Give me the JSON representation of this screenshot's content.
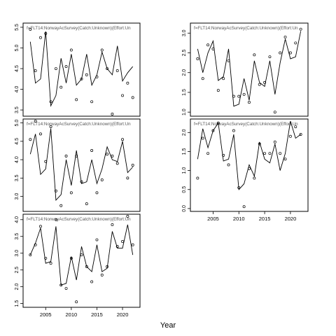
{
  "figure": {
    "xlabel": "Year"
  },
  "chart_data": [
    {
      "type": "line",
      "title": "f=FLT14:NorwayAcSurvey(Catch:Unknown)(Effort:Un",
      "xlim": [
        2001,
        2023
      ],
      "ylim": [
        3.4,
        5.55
      ],
      "yticks": [
        3.5,
        4.0,
        4.5,
        5.0,
        5.5
      ],
      "xticks": [],
      "series": [
        {
          "kind": "line",
          "x": [
            2002,
            2003,
            2004,
            2005,
            2006,
            2007,
            2008,
            2009,
            2010,
            2011,
            2012,
            2013,
            2014,
            2015,
            2016,
            2017,
            2018,
            2019,
            2020,
            2021,
            2022
          ],
          "y": [
            5.15,
            4.15,
            4.25,
            5.4,
            3.6,
            3.85,
            4.75,
            4.15,
            4.85,
            4.1,
            4.25,
            4.85,
            4.1,
            4.35,
            4.9,
            4.5,
            4.35,
            5.05,
            4.2,
            4.4,
            4.55
          ]
        },
        {
          "kind": "points",
          "x": [
            2002,
            2003,
            2004,
            2005,
            2006,
            2007,
            2008,
            2009,
            2010,
            2011,
            2012,
            2013,
            2014,
            2015,
            2016,
            2017,
            2018,
            2019,
            2020,
            2021,
            2022
          ],
          "y": [
            5.45,
            4.45,
            5.25,
            5.35,
            3.7,
            4.5,
            4.05,
            4.55,
            4.95,
            3.75,
            4.25,
            4.35,
            3.7,
            4.3,
            4.95,
            4.5,
            3.4,
            4.45,
            3.85,
            4.15,
            3.8
          ]
        }
      ]
    },
    {
      "type": "line",
      "title": "f=FLT14:NorwayAcSurvey(Catch:Unknown)(Effort:Un",
      "xlim": [
        2001,
        2023
      ],
      "ylim": [
        0.95,
        3.2
      ],
      "yticks": [
        1.0,
        1.5,
        2.0,
        2.5,
        3.0
      ],
      "xticks": [],
      "series": [
        {
          "kind": "line",
          "x": [
            2002,
            2003,
            2004,
            2005,
            2006,
            2007,
            2008,
            2009,
            2010,
            2011,
            2012,
            2013,
            2014,
            2015,
            2016,
            2017,
            2018,
            2019,
            2020,
            2021,
            2022
          ],
          "y": [
            2.6,
            2.0,
            2.5,
            2.8,
            1.8,
            1.9,
            2.6,
            1.15,
            1.2,
            1.85,
            1.3,
            2.3,
            1.75,
            1.65,
            2.3,
            1.45,
            2.25,
            2.85,
            2.35,
            2.4,
            3.05
          ]
        },
        {
          "kind": "points",
          "x": [
            2002,
            2003,
            2004,
            2005,
            2006,
            2007,
            2008,
            2009,
            2010,
            2011,
            2012,
            2013,
            2014,
            2015,
            2016,
            2017,
            2018,
            2019,
            2020,
            2021,
            2022
          ],
          "y": [
            2.35,
            1.85,
            2.7,
            2.6,
            1.55,
            1.85,
            2.3,
            1.4,
            1.4,
            1.45,
            1.25,
            2.45,
            1.7,
            1.75,
            2.4,
            1.0,
            2.5,
            2.9,
            2.5,
            2.75,
            3.1
          ]
        }
      ]
    },
    {
      "type": "line",
      "title": "f=FLT14:NorwayAcSurvey(Catch:Unknown)(Effort:Un",
      "xlim": [
        2001,
        2023
      ],
      "ylim": [
        2.65,
        5.05
      ],
      "yticks": [
        3.0,
        3.5,
        4.0,
        4.5,
        5.0
      ],
      "xticks": [],
      "series": [
        {
          "kind": "line",
          "x": [
            2002,
            2003,
            2004,
            2005,
            2006,
            2007,
            2008,
            2009,
            2010,
            2011,
            2012,
            2013,
            2014,
            2015,
            2016,
            2017,
            2018,
            2019,
            2020,
            2021,
            2022
          ],
          "y": [
            4.15,
            4.7,
            3.6,
            3.75,
            4.85,
            2.9,
            3.05,
            4.0,
            3.3,
            4.25,
            3.35,
            3.4,
            4.0,
            3.35,
            3.75,
            4.35,
            4.0,
            3.95,
            4.5,
            3.65,
            3.8
          ]
        },
        {
          "kind": "points",
          "x": [
            2002,
            2003,
            2004,
            2005,
            2006,
            2007,
            2008,
            2009,
            2010,
            2011,
            2012,
            2013,
            2014,
            2015,
            2016,
            2017,
            2018,
            2019,
            2020,
            2021,
            2022
          ],
          "y": [
            4.55,
            5.05,
            4.7,
            3.95,
            4.9,
            3.15,
            2.75,
            4.1,
            3.1,
            4.1,
            3.4,
            2.8,
            4.25,
            3.1,
            3.45,
            4.15,
            4.1,
            3.9,
            4.55,
            3.5,
            3.85
          ]
        }
      ]
    },
    {
      "type": "line",
      "title": "f=FLT14:NorwayAcSurvey(Catch:Unknown)(Effort:Un",
      "xlim": [
        2001,
        2023
      ],
      "ylim": [
        -0.02,
        2.3
      ],
      "yticks": [
        0.0,
        0.5,
        1.0,
        1.5,
        2.0
      ],
      "xticks": [
        2005,
        2010,
        2015,
        2020
      ],
      "series": [
        {
          "kind": "line",
          "x": [
            2002,
            2003,
            2004,
            2005,
            2006,
            2007,
            2008,
            2009,
            2010,
            2011,
            2012,
            2013,
            2014,
            2015,
            2016,
            2017,
            2018,
            2019,
            2020,
            2021,
            2022
          ],
          "y": [
            1.3,
            2.1,
            1.6,
            2.05,
            2.25,
            1.25,
            1.3,
            1.95,
            0.5,
            0.65,
            1.15,
            0.85,
            1.75,
            1.3,
            1.2,
            1.7,
            1.0,
            1.45,
            2.3,
            1.85,
            1.95
          ]
        },
        {
          "kind": "points",
          "x": [
            2002,
            2003,
            2004,
            2005,
            2006,
            2007,
            2008,
            2009,
            2010,
            2011,
            2012,
            2013,
            2014,
            2015,
            2016,
            2017,
            2018,
            2019,
            2020,
            2021,
            2022
          ],
          "y": [
            0.8,
            1.85,
            1.45,
            2.05,
            2.25,
            1.4,
            1.15,
            2.05,
            0.55,
            0.05,
            1.05,
            0.8,
            1.7,
            1.45,
            1.45,
            1.75,
            1.45,
            1.3,
            1.9,
            2.15,
            1.95
          ]
        }
      ]
    },
    {
      "type": "line",
      "title": "f=FLT14:NorwayAcSurvey(Catch:Unknown)(Effort:Un",
      "xlim": [
        2001,
        2023
      ],
      "ylim": [
        1.45,
        4.1
      ],
      "yticks": [
        1.5,
        2.0,
        2.5,
        3.0,
        3.5,
        4.0
      ],
      "xticks": [
        2005,
        2010,
        2015,
        2020
      ],
      "series": [
        {
          "kind": "line",
          "x": [
            2002,
            2003,
            2004,
            2005,
            2006,
            2007,
            2008,
            2009,
            2010,
            2011,
            2012,
            2013,
            2014,
            2015,
            2016,
            2017,
            2018,
            2019,
            2020,
            2021,
            2022
          ],
          "y": [
            2.95,
            3.3,
            3.75,
            2.7,
            2.75,
            3.8,
            2.05,
            2.1,
            2.9,
            2.2,
            3.2,
            2.6,
            2.45,
            3.25,
            2.45,
            2.55,
            3.65,
            3.15,
            3.15,
            3.85,
            2.95
          ]
        },
        {
          "kind": "points",
          "x": [
            2002,
            2003,
            2004,
            2005,
            2006,
            2007,
            2008,
            2009,
            2010,
            2011,
            2012,
            2013,
            2014,
            2015,
            2016,
            2017,
            2018,
            2019,
            2020,
            2021,
            2022
          ],
          "y": [
            2.95,
            3.25,
            3.8,
            2.85,
            2.7,
            4.0,
            2.05,
            1.95,
            2.85,
            1.55,
            2.95,
            2.6,
            2.15,
            3.4,
            2.35,
            2.6,
            3.85,
            3.2,
            3.35,
            4.1,
            3.25
          ]
        }
      ]
    }
  ]
}
